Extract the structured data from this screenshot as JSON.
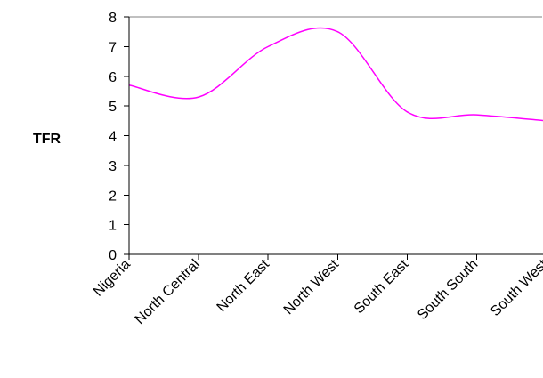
{
  "chart_data": {
    "type": "line",
    "title": "",
    "xlabel": "",
    "ylabel": "TFR",
    "ylim": [
      0,
      8
    ],
    "yticks": [
      "0",
      "1",
      "2",
      "3",
      "4",
      "5",
      "6",
      "7",
      "8"
    ],
    "categories": [
      "Nigeria",
      "North Central",
      "North East",
      "North West",
      "South East",
      "South South",
      "South West"
    ],
    "series": [
      {
        "name": "",
        "values": [
          5.7,
          5.3,
          7.0,
          7.5,
          4.8,
          4.7,
          4.5
        ],
        "color": "#FF00FF"
      }
    ],
    "grid": false,
    "legend": "none",
    "smooth": true
  }
}
